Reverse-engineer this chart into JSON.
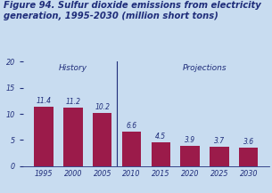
{
  "title_line1": "Figure 94. Sulfur dioxide emissions from electricity",
  "title_line2": "generation, 1995-2030 (million short tons)",
  "categories": [
    1995,
    2000,
    2005,
    2010,
    2015,
    2020,
    2025,
    2030
  ],
  "values": [
    11.4,
    11.2,
    10.2,
    6.6,
    4.5,
    3.9,
    3.7,
    3.6
  ],
  "bar_color": "#9B1B4A",
  "background_color": "#C8DCF0",
  "title_color": "#1F2D7A",
  "label_color": "#1F2D7A",
  "history_label": "History",
  "projections_label": "Projections",
  "divider_after_index": 2,
  "ylim": [
    0,
    20
  ],
  "yticks": [
    0,
    5,
    10,
    15,
    20
  ],
  "bar_width": 0.65,
  "title_fontsize": 7.2,
  "tick_fontsize": 5.8,
  "annotation_fontsize": 5.5,
  "section_label_fontsize": 6.5
}
